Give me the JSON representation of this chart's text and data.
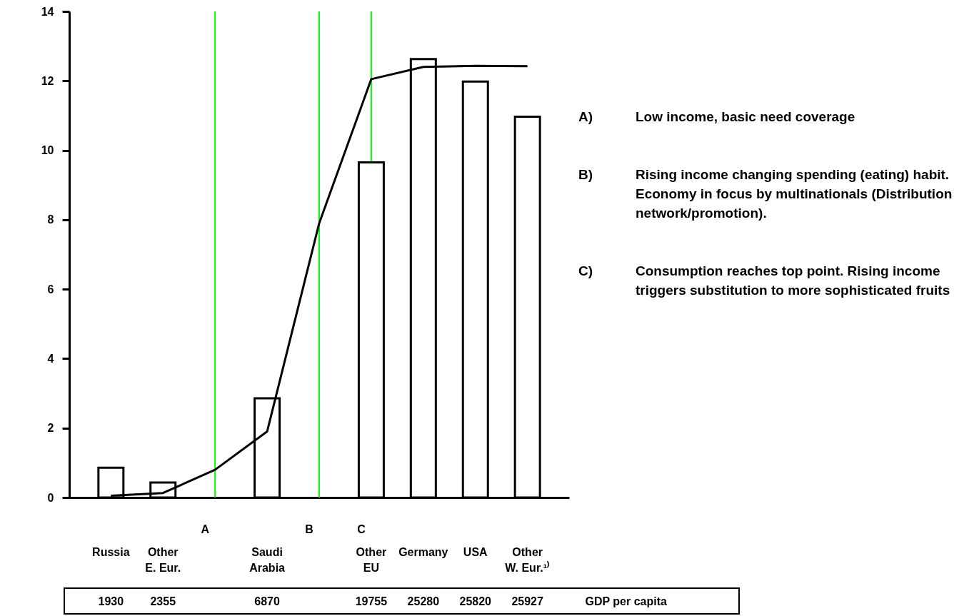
{
  "chart_data": {
    "type": "bar",
    "categories": [
      "Russia",
      "Other E. Eur.",
      null,
      "Saudi Arabia",
      null,
      "Other EU",
      "Germany",
      "USA",
      "Other W. Eur.¹⁾"
    ],
    "ylim": [
      0,
      14
    ],
    "yticks": [
      0,
      2,
      4,
      6,
      8,
      10,
      12,
      14
    ],
    "xlabel": "GDP per capita",
    "series": [
      {
        "color": "#000000",
        "values": [
          0.86,
          0.43,
          null,
          2.86,
          null,
          9.65,
          12.63,
          11.98,
          10.97
        ]
      },
      {
        "type": "line",
        "color": "#000000",
        "values": [
          0.05,
          0.13,
          0.8,
          1.9,
          7.9,
          12.05,
          12.4,
          12.43,
          12.42
        ]
      }
    ],
    "ref_lines": [
      {
        "axis": "x",
        "value": null,
        "label": "A",
        "color": "#00ff00"
      },
      {
        "axis": "x",
        "value": null,
        "label": "B",
        "color": "#00ff00"
      },
      {
        "axis": "x",
        "value": "Other EU",
        "label": "C",
        "color": "#00ff00"
      }
    ],
    "annotations": [
      "A) Low income, basic need coverage",
      "B) Rising income changing spending (eating) habit. Economy in focus by multinationals (Distribution network/promotion).",
      "C) Consumption reaches top point. Rising income triggers substitution to more sophisticated fruits",
      "1930",
      "2355",
      "6870",
      "19755",
      "25280",
      "25820",
      "25927"
    ]
  }
}
